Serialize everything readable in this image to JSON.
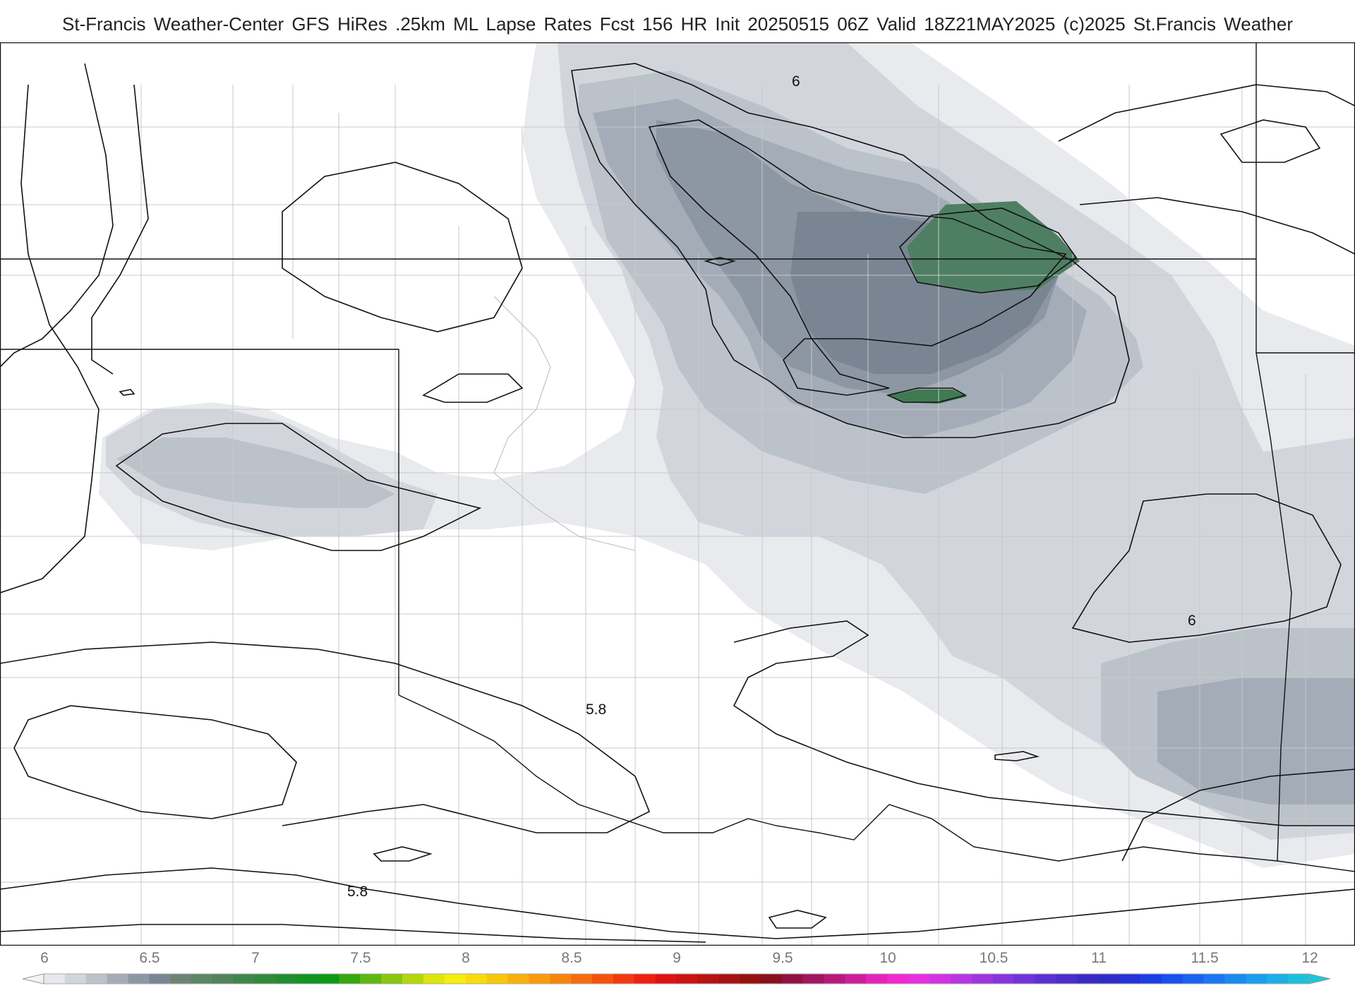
{
  "title": "St-Francis Weather-Center GFS HiRes .25km ML Lapse Rates  Fcst 156 HR Init 20250515 06Z  Valid 18Z21MAY2025    (c)2025 St.Francis Weather",
  "map": {
    "variable": "ML Lapse Rates",
    "contour_labels": [
      "6",
      "6",
      "5.8",
      "5.8"
    ],
    "fill_colors": [
      "#e8eaed",
      "#d2d6dc",
      "#bcc2ca",
      "#a4acb7",
      "#8d97a4",
      "#7a8594",
      "#4f7f63",
      "#3f7a52"
    ]
  },
  "legend": {
    "ticks": [
      "6",
      "6.5",
      "7",
      "7.5",
      "8",
      "8.5",
      "9",
      "9.5",
      "10",
      "10.5",
      "11",
      "11.5",
      "12"
    ],
    "colors": [
      "#e6e8eb",
      "#d2d6dc",
      "#bcc2ca",
      "#a4acb7",
      "#8d97a4",
      "#7a8594",
      "#6b8572",
      "#5c8565",
      "#4f8558",
      "#3f864b",
      "#2f8a3e",
      "#208e30",
      "#129322",
      "#0c9a14",
      "#33a80f",
      "#5cb80e",
      "#87c70d",
      "#b2d60c",
      "#dde50b",
      "#f5ef0a",
      "#f8dc0a",
      "#f9c70a",
      "#f9b10a",
      "#f99b0b",
      "#f8840c",
      "#f76b0d",
      "#f5520e",
      "#f3380f",
      "#ef2010",
      "#e01212",
      "#cc1212",
      "#b81212",
      "#a61212",
      "#961010",
      "#8a0f1e",
      "#8f1240",
      "#a2165e",
      "#b81a7c",
      "#cf1e9b",
      "#e523ba",
      "#f228d2",
      "#e82ee0",
      "#d232e3",
      "#b934e2",
      "#a034e0",
      "#8734de",
      "#6f33d9",
      "#5a30d2",
      "#4a2dcb",
      "#3b2ac3",
      "#2f2cc9",
      "#2533d8",
      "#1d3ee6",
      "#1a4ff0",
      "#1a62f2",
      "#1a76f2",
      "#1a8af0",
      "#1a9ded",
      "#1aafe6",
      "#1ac0dc"
    ]
  }
}
